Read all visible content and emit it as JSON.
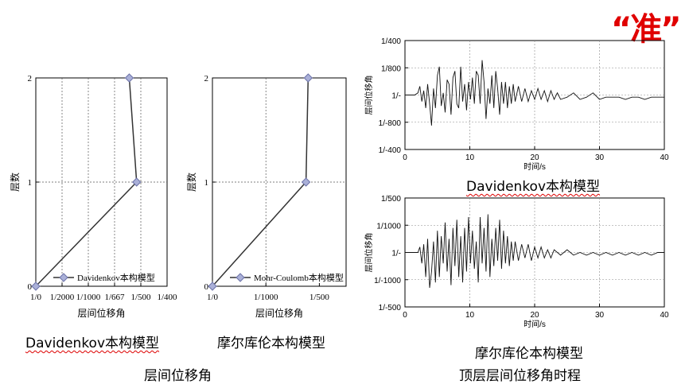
{
  "stamp": "“准”",
  "captions": {
    "left_model": "Davidenkov本构模型",
    "mid_model": "摩尔库伦本构模型",
    "left_section": "层间位移角",
    "right_top_model": "Davidenkov本构模型",
    "right_bottom_model": "摩尔库伦本构模型",
    "right_section": "顶层层间位移角时程"
  },
  "chart_data": [
    {
      "type": "line",
      "xlabel": "层间位移角",
      "ylabel": "层数",
      "xticks": [
        "1/0",
        "1/2000",
        "1/1000",
        "1/667",
        "1/500",
        "1/400"
      ],
      "yticks": [
        "0",
        "1",
        "2"
      ],
      "legend": "Davidenkov本构模型",
      "legend_position": "bottom-right",
      "series": [
        {
          "name": "Davidenkov本构模型",
          "x": [
            0,
            0.00192,
            0.00178
          ],
          "y": [
            0,
            1,
            2
          ]
        }
      ],
      "xlim": [
        0,
        0.0025
      ],
      "ylim": [
        0,
        2
      ],
      "grid": true
    },
    {
      "type": "line",
      "xlabel": "层间位移角",
      "ylabel": "层数",
      "xticks": [
        "1/0",
        "1/1000",
        "1/500"
      ],
      "yticks": [
        "0",
        "1",
        "2"
      ],
      "legend": "Mohr-Coulomb本构模型",
      "legend_position": "bottom-right",
      "series": [
        {
          "name": "Mohr-Coulomb本构模型",
          "x": [
            0,
            0.00175,
            0.00179
          ],
          "y": [
            0,
            1,
            2
          ]
        }
      ],
      "xlim": [
        0,
        0.0025
      ],
      "ylim": [
        0,
        2
      ],
      "grid": true
    },
    {
      "type": "line",
      "xlabel": "时间/s",
      "ylabel": "层间位移角",
      "xticks": [
        "0",
        "10",
        "20",
        "30",
        "40"
      ],
      "yticks": [
        "1/400",
        "1/800",
        "1/-",
        "1/-800",
        "1/-400"
      ],
      "xlim": [
        0,
        40
      ],
      "ylim": [
        -0.0025,
        0.0025
      ],
      "series": [
        {
          "x": [
            0,
            1,
            1.5,
            2,
            2.3,
            2.6,
            2.9,
            3.2,
            3.5,
            3.8,
            4.1,
            4.4,
            4.7,
            5,
            5.3,
            5.6,
            5.9,
            6.2,
            6.5,
            6.8,
            7.1,
            7.4,
            7.7,
            8,
            8.3,
            8.6,
            8.9,
            9.2,
            9.5,
            9.8,
            10.1,
            10.4,
            10.7,
            11,
            11.3,
            11.6,
            11.9,
            12.2,
            12.5,
            12.8,
            13.1,
            13.4,
            13.7,
            14,
            14.3,
            14.6,
            14.9,
            15.2,
            15.5,
            15.8,
            16.1,
            16.4,
            16.7,
            17,
            17.5,
            18,
            18.5,
            19,
            19.5,
            20,
            20.5,
            21,
            21.5,
            22,
            22.5,
            23,
            23.5,
            24,
            25,
            26,
            27,
            28,
            29,
            30,
            31,
            32,
            33,
            34,
            35,
            36,
            37,
            38,
            39,
            40
          ],
          "y": [
            0,
            0,
            0,
            0.0001,
            0.0004,
            -0.0003,
            0.0002,
            -0.0006,
            0.0005,
            -0.0004,
            -0.0014,
            0.0003,
            -0.0006,
            0.0009,
            0.0013,
            -0.0005,
            0.0001,
            -0.0008,
            0.0007,
            0.0005,
            -0.0009,
            0.0008,
            0.0011,
            -0.0004,
            -0.0006,
            0.0013,
            -0.0003,
            0.0005,
            -0.0007,
            0.0006,
            -0.0002,
            0.0008,
            -0.0004,
            0.0011,
            0.0009,
            -0.0004,
            0.0016,
            0.0006,
            -0.0011,
            0.0003,
            -0.0004,
            0.0009,
            -0.0006,
            0.0011,
            0.0003,
            -0.0009,
            0.0006,
            -0.0004,
            0.0006,
            -0.0006,
            0.0004,
            -0.0004,
            0.0005,
            -0.0003,
            0.0004,
            -0.0003,
            0.0003,
            -0.0003,
            0.0002,
            -0.0002,
            0.0003,
            -0.0002,
            0.0002,
            -0.0003,
            0.0002,
            -0.0002,
            0.0001,
            -0.0002,
            -0.0001,
            0.0001,
            -0.0002,
            -0.0001,
            0.0001,
            -0.0002,
            -0.0001,
            -0.0001,
            -0.0001,
            -0.0002,
            -0.0001,
            -0.0001,
            -0.0002,
            -0.0001,
            -0.0001,
            -0.0001
          ]
        }
      ],
      "grid": true
    },
    {
      "type": "line",
      "xlabel": "时间/s",
      "ylabel": "层间位移角",
      "xticks": [
        "0",
        "10",
        "20",
        "30",
        "40"
      ],
      "yticks": [
        "1/500",
        "1/1000",
        "1/-",
        "1/-1000",
        "1/-500"
      ],
      "xlim": [
        0,
        40
      ],
      "ylim": [
        -0.002,
        0.002
      ],
      "series": [
        {
          "x": [
            0,
            1,
            2,
            2.3,
            2.6,
            2.9,
            3.2,
            3.5,
            3.8,
            4.1,
            4.4,
            4.7,
            5,
            5.3,
            5.6,
            5.9,
            6.2,
            6.5,
            6.8,
            7.1,
            7.4,
            7.7,
            8,
            8.3,
            8.6,
            8.9,
            9.2,
            9.5,
            9.8,
            10.1,
            10.4,
            10.7,
            11,
            11.3,
            11.6,
            11.9,
            12.2,
            12.5,
            12.8,
            13.1,
            13.4,
            13.7,
            14,
            14.3,
            14.6,
            14.9,
            15.2,
            15.5,
            15.8,
            16.1,
            16.4,
            16.7,
            17,
            17.5,
            18,
            18.5,
            19,
            19.5,
            20,
            20.5,
            21,
            21.5,
            22,
            22.5,
            23,
            24,
            25,
            26,
            27,
            28,
            29,
            30,
            31,
            32,
            33,
            34,
            35,
            36,
            37,
            38,
            39,
            40
          ],
          "y": [
            0,
            0,
            0,
            0.0002,
            -0.0004,
            0.0003,
            -0.0009,
            0.0005,
            -0.0013,
            -0.0007,
            0.0004,
            -0.0011,
            0.0008,
            -0.0009,
            0.0006,
            -0.0004,
            0.0011,
            -0.0007,
            0.0005,
            -0.0012,
            0.0009,
            -0.0005,
            0.0012,
            -0.0009,
            0.0006,
            -0.0011,
            0.0009,
            -0.0007,
            0.0013,
            -0.0004,
            0.0008,
            -0.0006,
            0.0004,
            -0.0011,
            0.0013,
            -0.0004,
            0.0009,
            -0.0007,
            0.0014,
            -0.0009,
            0.0005,
            -0.0005,
            0.0009,
            -0.0003,
            0.0012,
            -0.0006,
            0.0008,
            -0.0004,
            0.0006,
            -0.0005,
            0.0004,
            -0.0003,
            0.0004,
            -0.0003,
            0.0003,
            -0.0002,
            0.0003,
            -0.0003,
            0.0002,
            -0.0002,
            0.0002,
            -0.0002,
            0.0001,
            -0.0002,
            0.0001,
            -0.0001,
            0.0001,
            -0.0001,
            0,
            -0.0001,
            0,
            -0.0001,
            0,
            -0.0001,
            0,
            -0.0001,
            0,
            -0.0001,
            0,
            -0.0001,
            0,
            0
          ]
        }
      ],
      "grid": true
    }
  ]
}
